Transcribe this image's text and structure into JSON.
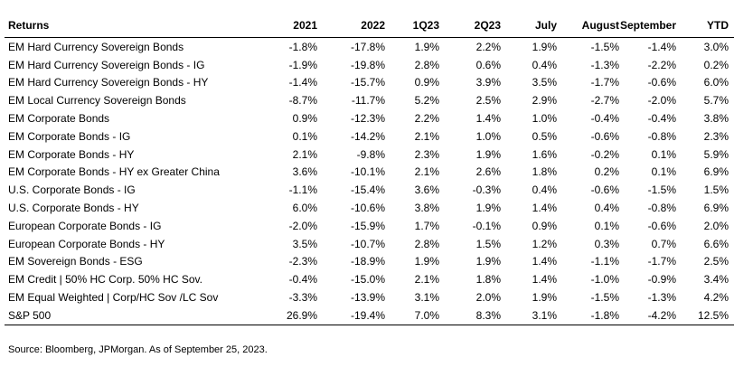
{
  "table": {
    "headers": [
      "Returns",
      "2021",
      "2022",
      "1Q23",
      "2Q23",
      "July",
      "August",
      "September",
      "YTD"
    ],
    "rows": [
      [
        "EM Hard Currency Sovereign Bonds",
        "-1.8%",
        "-17.8%",
        "1.9%",
        "2.2%",
        "1.9%",
        "-1.5%",
        "-1.4%",
        "3.0%"
      ],
      [
        "EM Hard Currency Sovereign Bonds - IG",
        "-1.9%",
        "-19.8%",
        "2.8%",
        "0.6%",
        "0.4%",
        "-1.3%",
        "-2.2%",
        "0.2%"
      ],
      [
        "EM Hard Currency Sovereign Bonds - HY",
        "-1.4%",
        "-15.7%",
        "0.9%",
        "3.9%",
        "3.5%",
        "-1.7%",
        "-0.6%",
        "6.0%"
      ],
      [
        "EM Local Currency Sovereign Bonds",
        "-8.7%",
        "-11.7%",
        "5.2%",
        "2.5%",
        "2.9%",
        "-2.7%",
        "-2.0%",
        "5.7%"
      ],
      [
        "EM Corporate Bonds",
        "0.9%",
        "-12.3%",
        "2.2%",
        "1.4%",
        "1.0%",
        "-0.4%",
        "-0.4%",
        "3.8%"
      ],
      [
        "EM Corporate Bonds - IG",
        "0.1%",
        "-14.2%",
        "2.1%",
        "1.0%",
        "0.5%",
        "-0.6%",
        "-0.8%",
        "2.3%"
      ],
      [
        "EM Corporate Bonds - HY",
        "2.1%",
        "-9.8%",
        "2.3%",
        "1.9%",
        "1.6%",
        "-0.2%",
        "0.1%",
        "5.9%"
      ],
      [
        "EM Corporate Bonds - HY ex Greater China",
        "3.6%",
        "-10.1%",
        "2.1%",
        "2.6%",
        "1.8%",
        "0.2%",
        "0.1%",
        "6.9%"
      ],
      [
        "U.S. Corporate Bonds - IG",
        "-1.1%",
        "-15.4%",
        "3.6%",
        "-0.3%",
        "0.4%",
        "-0.6%",
        "-1.5%",
        "1.5%"
      ],
      [
        "U.S. Corporate Bonds - HY",
        "6.0%",
        "-10.6%",
        "3.8%",
        "1.9%",
        "1.4%",
        "0.4%",
        "-0.8%",
        "6.9%"
      ],
      [
        "European Corporate Bonds - IG",
        "-2.0%",
        "-15.9%",
        "1.7%",
        "-0.1%",
        "0.9%",
        "0.1%",
        "-0.6%",
        "2.0%"
      ],
      [
        "European Corporate Bonds - HY",
        "3.5%",
        "-10.7%",
        "2.8%",
        "1.5%",
        "1.2%",
        "0.3%",
        "0.7%",
        "6.6%"
      ],
      [
        "EM Sovereign Bonds - ESG",
        "-2.3%",
        "-18.9%",
        "1.9%",
        "1.9%",
        "1.4%",
        "-1.1%",
        "-1.7%",
        "2.5%"
      ],
      [
        "EM Credit | 50% HC Corp. 50% HC Sov.",
        "-0.4%",
        "-15.0%",
        "2.1%",
        "1.8%",
        "1.4%",
        "-1.0%",
        "-0.9%",
        "3.4%"
      ],
      [
        "EM Equal Weighted | Corp/HC Sov /LC Sov",
        "-3.3%",
        "-13.9%",
        "3.1%",
        "2.0%",
        "1.9%",
        "-1.5%",
        "-1.3%",
        "4.2%"
      ],
      [
        "S&P 500",
        "26.9%",
        "-19.4%",
        "7.0%",
        "8.3%",
        "3.1%",
        "-1.8%",
        "-4.2%",
        "12.5%"
      ]
    ]
  },
  "source": "Source: Bloomberg, JPMorgan. As of September 25, 2023."
}
